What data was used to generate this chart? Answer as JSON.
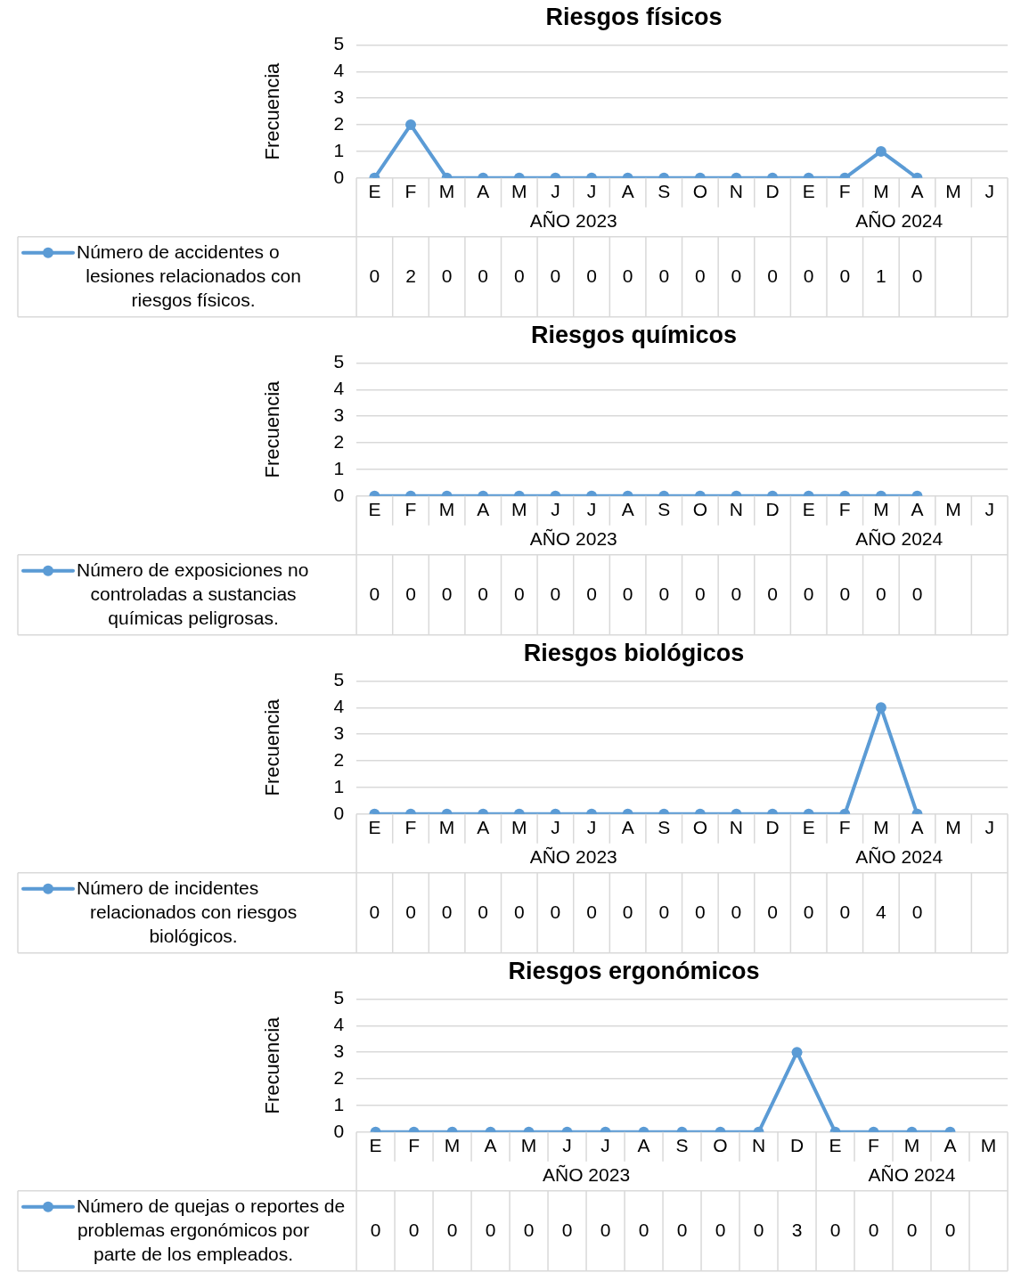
{
  "chart_data": [
    {
      "type": "line",
      "title": "Riesgos físicos",
      "ylabel": "Frecuencia",
      "categories": [
        "E",
        "F",
        "M",
        "A",
        "M",
        "J",
        "J",
        "A",
        "S",
        "O",
        "N",
        "D",
        "E",
        "F",
        "M",
        "A",
        "M",
        "J"
      ],
      "series": [
        {
          "name": "Número de accidentes o lesiones relacionados con riesgos físicos.",
          "color": "#5b9bd5",
          "values": [
            0,
            2,
            0,
            0,
            0,
            0,
            0,
            0,
            0,
            0,
            0,
            0,
            0,
            0,
            1,
            0,
            null,
            null
          ]
        }
      ],
      "ylim": [
        0,
        5
      ],
      "yticks": [
        0,
        1,
        2,
        3,
        4,
        5
      ],
      "grid": "y",
      "marker": "circle",
      "line_style": "solid",
      "legend": "bottom left",
      "data_labels": true,
      "annotations": [
        "AÑO 2023",
        "AÑO 2024"
      ]
    },
    {
      "type": "line",
      "title": "Riesgos químicos",
      "ylabel": "Frecuencia",
      "categories": [
        "E",
        "F",
        "M",
        "A",
        "M",
        "J",
        "J",
        "A",
        "S",
        "O",
        "N",
        "D",
        "E",
        "F",
        "M",
        "A",
        "M",
        "J"
      ],
      "series": [
        {
          "name": "Número de exposiciones no controladas a sustancias químicas peligrosas.",
          "color": "#5b9bd5",
          "values": [
            0,
            0,
            0,
            0,
            0,
            0,
            0,
            0,
            0,
            0,
            0,
            0,
            0,
            0,
            0,
            0,
            null,
            null
          ]
        }
      ],
      "ylim": [
        0,
        5
      ],
      "yticks": [
        0,
        1,
        2,
        3,
        4,
        5
      ],
      "grid": "y",
      "marker": "circle",
      "line_style": "solid",
      "legend": "bottom left",
      "data_labels": true,
      "annotations": [
        "AÑO 2023",
        "AÑO 2024"
      ]
    },
    {
      "type": "line",
      "title": "Riesgos biológicos",
      "ylabel": "Frecuencia",
      "categories": [
        "E",
        "F",
        "M",
        "A",
        "M",
        "J",
        "J",
        "A",
        "S",
        "O",
        "N",
        "D",
        "E",
        "F",
        "M",
        "A",
        "M",
        "J"
      ],
      "series": [
        {
          "name": "Número de incidentes relacionados con riesgos biológicos.",
          "color": "#5b9bd5",
          "values": [
            0,
            0,
            0,
            0,
            0,
            0,
            0,
            0,
            0,
            0,
            0,
            0,
            0,
            0,
            4,
            0,
            null,
            null
          ]
        }
      ],
      "ylim": [
        0,
        5
      ],
      "yticks": [
        0,
        1,
        2,
        3,
        4,
        5
      ],
      "grid": "y",
      "marker": "circle",
      "line_style": "solid",
      "legend": "bottom left",
      "data_labels": true,
      "annotations": [
        "AÑO 2023",
        "AÑO 2024"
      ]
    },
    {
      "type": "line",
      "title": "Riesgos ergonómicos",
      "ylabel": "Frecuencia",
      "categories": [
        "E",
        "F",
        "M",
        "A",
        "M",
        "J",
        "J",
        "A",
        "S",
        "O",
        "N",
        "D",
        "E",
        "F",
        "M",
        "A",
        "M"
      ],
      "series": [
        {
          "name": "Número de quejas o reportes de problemas ergonómicos por parte de los empleados.",
          "color": "#5b9bd5",
          "values": [
            0,
            0,
            0,
            0,
            0,
            0,
            0,
            0,
            0,
            0,
            0,
            3,
            0,
            0,
            0,
            0,
            null
          ]
        }
      ],
      "ylim": [
        0,
        5
      ],
      "yticks": [
        0,
        1,
        2,
        3,
        4,
        5
      ],
      "grid": "y",
      "marker": "circle",
      "line_style": "solid",
      "legend": "bottom left",
      "data_labels": true,
      "annotations": [
        "AÑO 2023",
        "AÑO 2024"
      ]
    }
  ]
}
